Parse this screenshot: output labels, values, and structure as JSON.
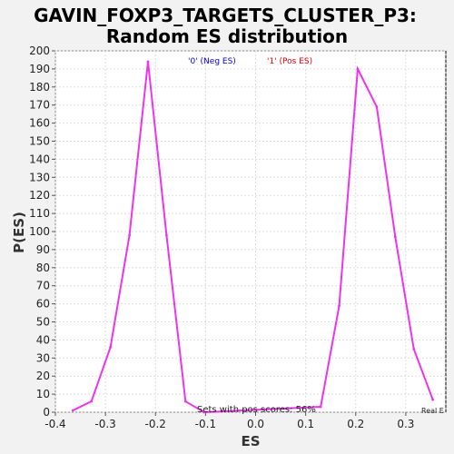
{
  "chart_data": {
    "type": "line",
    "title_line1": "GAVIN_FOXP3_TARGETS_CLUSTER_P3:",
    "title_line2": "Random ES distribution",
    "xlabel": "ES",
    "ylabel": "P(ES)",
    "xlim": [
      -0.4,
      0.38
    ],
    "ylim": [
      0,
      200
    ],
    "x_ticks": [
      -0.4,
      -0.3,
      -0.2,
      -0.1,
      0.0,
      0.1,
      0.2,
      0.3
    ],
    "x_tick_labels": [
      "-0.4",
      "-0.3",
      "-0.2",
      "-0.1",
      "0.0",
      "0.1",
      "0.2",
      "0.3"
    ],
    "y_ticks": [
      0,
      10,
      20,
      30,
      40,
      50,
      60,
      70,
      80,
      90,
      100,
      110,
      120,
      130,
      140,
      150,
      160,
      170,
      180,
      190,
      200
    ],
    "grid": true,
    "legend_neg": "'0' (Neg ES)",
    "legend_pos": "'1' (Pos ES)",
    "legend_neg_color": "#0000ee",
    "legend_pos_color": "#ee0000",
    "line_color": "#ee33ee",
    "annotation": "Sets with pos scores: 56%",
    "real_es_label": "Real E",
    "real_es_x": 0.38,
    "series": [
      {
        "x": [
          -0.365,
          -0.328,
          -0.29,
          -0.252,
          -0.215,
          -0.178,
          -0.14,
          -0.103,
          0.13,
          0.167,
          0.204,
          0.242,
          0.279,
          0.316,
          0.354
        ],
        "y": [
          1,
          6,
          36,
          98,
          194,
          98,
          6,
          0,
          3,
          59,
          190,
          169,
          97,
          35,
          7
        ]
      }
    ]
  }
}
